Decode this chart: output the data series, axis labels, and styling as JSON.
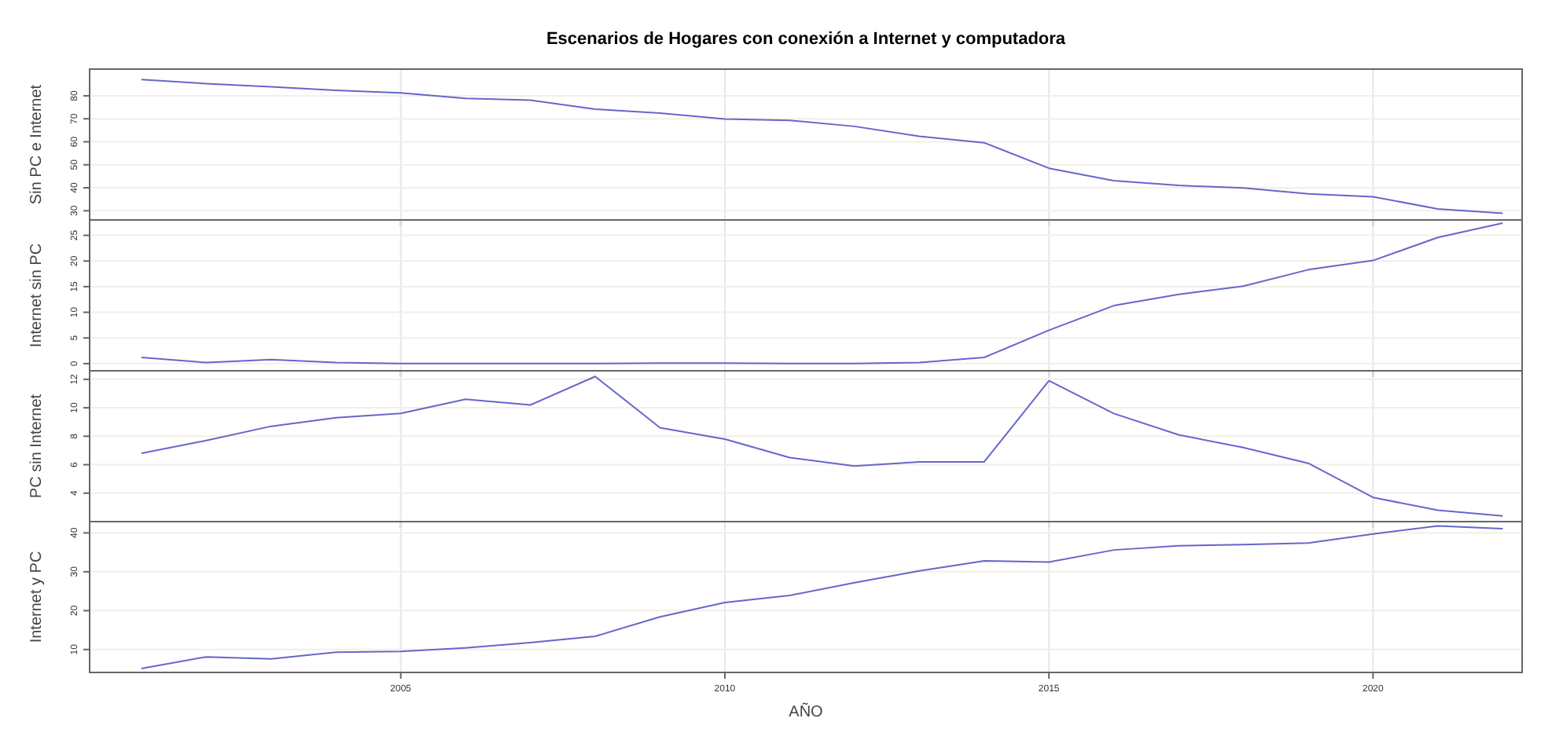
{
  "chart_data": [
    {
      "type": "line",
      "title": "Escenarios de Hogares con conexión a Internet y computadora",
      "ylabel": "Sin PC e Internet",
      "x": [
        2001,
        2002,
        2003,
        2004,
        2005,
        2006,
        2007,
        2008,
        2009,
        2010,
        2011,
        2012,
        2013,
        2014,
        2015,
        2016,
        2017,
        2018,
        2019,
        2020,
        2021,
        2022
      ],
      "xlim": [
        2000.2,
        2022.3
      ],
      "xticks": [
        2005,
        2010,
        2015,
        2020
      ],
      "ylim": [
        26,
        91.6
      ],
      "yticks": [
        30,
        40,
        50,
        60,
        70,
        80
      ],
      "grid": true,
      "tick_labels": "y",
      "series": [
        {
          "color": "#6666cc",
          "values": [
            87.1,
            85.3,
            83.9,
            82.4,
            81.3,
            78.9,
            78.1,
            74.2,
            72.5,
            69.9,
            69.3,
            66.7,
            62.4,
            59.6,
            48.5,
            43.1,
            41,
            39.9,
            37.4,
            36.1,
            30.8,
            28.9
          ]
        }
      ]
    },
    {
      "type": "line",
      "ylabel": "Internet sin PC",
      "x": [
        2001,
        2002,
        2003,
        2004,
        2005,
        2006,
        2007,
        2008,
        2009,
        2010,
        2011,
        2012,
        2013,
        2014,
        2015,
        2016,
        2017,
        2018,
        2019,
        2020,
        2021,
        2022
      ],
      "xlim": [
        2000.2,
        2022.3
      ],
      "xticks": [
        2005,
        2010,
        2015,
        2020
      ],
      "ylim": [
        -1.4,
        28
      ],
      "yticks": [
        0,
        5,
        10,
        15,
        20,
        25
      ],
      "grid": true,
      "tick_labels": "y",
      "series": [
        {
          "color": "#6666cc",
          "values": [
            1.2,
            0.2,
            0.8,
            0.2,
            0,
            0,
            0,
            0,
            0.1,
            0.1,
            0,
            0,
            0.2,
            1.2,
            6.5,
            11.3,
            13.5,
            15.1,
            18.3,
            20.1,
            24.6,
            27.4
          ]
        }
      ]
    },
    {
      "type": "line",
      "ylabel": "PC sin Internet",
      "x": [
        2001,
        2002,
        2003,
        2004,
        2005,
        2006,
        2007,
        2008,
        2009,
        2010,
        2011,
        2012,
        2013,
        2014,
        2015,
        2016,
        2017,
        2018,
        2019,
        2020,
        2021,
        2022
      ],
      "xlim": [
        2000.2,
        2022.3
      ],
      "xticks": [
        2005,
        2010,
        2015,
        2020
      ],
      "ylim": [
        2,
        12.6
      ],
      "yticks": [
        4,
        6,
        8,
        10,
        12
      ],
      "grid": true,
      "tick_labels": "y",
      "series": [
        {
          "color": "#6666cc",
          "values": [
            6.8,
            7.7,
            8.7,
            9.3,
            9.6,
            10.6,
            10.2,
            12.2,
            8.6,
            7.8,
            6.5,
            5.9,
            6.2,
            6.2,
            11.9,
            9.6,
            8.1,
            7.2,
            6.1,
            3.7,
            2.8,
            2.4
          ]
        }
      ]
    },
    {
      "type": "line",
      "ylabel": "Internet y PC",
      "xlabel": "AÑO",
      "x": [
        2001,
        2002,
        2003,
        2004,
        2005,
        2006,
        2007,
        2008,
        2009,
        2010,
        2011,
        2012,
        2013,
        2014,
        2015,
        2016,
        2017,
        2018,
        2019,
        2020,
        2021,
        2022
      ],
      "xlim": [
        2000.2,
        2022.3
      ],
      "xticks": [
        2005,
        2010,
        2015,
        2020
      ],
      "ylim": [
        4.1,
        42.9
      ],
      "yticks": [
        10,
        20,
        30,
        40
      ],
      "grid": true,
      "series": [
        {
          "color": "#6666cc",
          "values": [
            5.1,
            8.1,
            7.6,
            9.3,
            9.5,
            10.4,
            11.8,
            13.4,
            18.4,
            22.1,
            23.9,
            27.2,
            30.2,
            32.8,
            32.5,
            35.6,
            36.7,
            37,
            37.4,
            39.7,
            41.8,
            41.1
          ]
        }
      ]
    }
  ]
}
